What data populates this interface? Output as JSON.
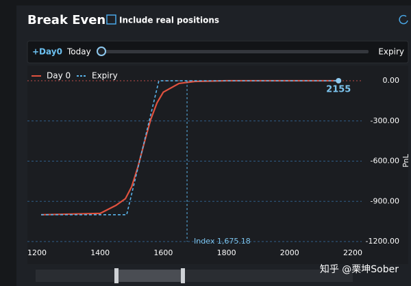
{
  "header": {
    "title": "Break Even",
    "checkbox_label": "Include real positions"
  },
  "slider": {
    "badge": "+Day0",
    "start_label": "Today",
    "end_label": "Expiry"
  },
  "watermark": "知乎 @栗坤Sober",
  "chart_data": {
    "type": "line",
    "y_label": "PnL",
    "legend": "top-left",
    "grid": true,
    "xlim": [
      1200,
      2200
    ],
    "xticks": [
      1200,
      1400,
      1600,
      1800,
      2000,
      2200
    ],
    "ylim": [
      -1200,
      92
    ],
    "yticks": [
      {
        "value": 0,
        "label": "0.00"
      },
      {
        "value": -300,
        "label": "-300.00"
      },
      {
        "value": -600,
        "label": "-600.00"
      },
      {
        "value": -900,
        "label": "-900.00"
      },
      {
        "value": -1200,
        "label": "-1200.00"
      }
    ],
    "series": [
      {
        "name": "Day 0",
        "color": "#e0523f",
        "dash": false,
        "x": [
          1213,
          1400,
          1450,
          1480,
          1500,
          1520,
          1540,
          1560,
          1580,
          1600,
          1650,
          1700,
          1800,
          2155
        ],
        "values": [
          -1000,
          -990,
          -930,
          -880,
          -790,
          -640,
          -460,
          -290,
          -165,
          -85,
          -20,
          -5,
          0,
          0
        ]
      },
      {
        "name": "Expiry",
        "color": "#5ab4ea",
        "dash": true,
        "x": [
          1213,
          1484,
          1586,
          2155
        ],
        "values": [
          -1000,
          -1000,
          0,
          0
        ]
      }
    ],
    "index_line": {
      "x": 1675.18,
      "label": "Index 1,675.18"
    },
    "marker": {
      "x": 2155,
      "y": 0,
      "label": 2155
    }
  }
}
